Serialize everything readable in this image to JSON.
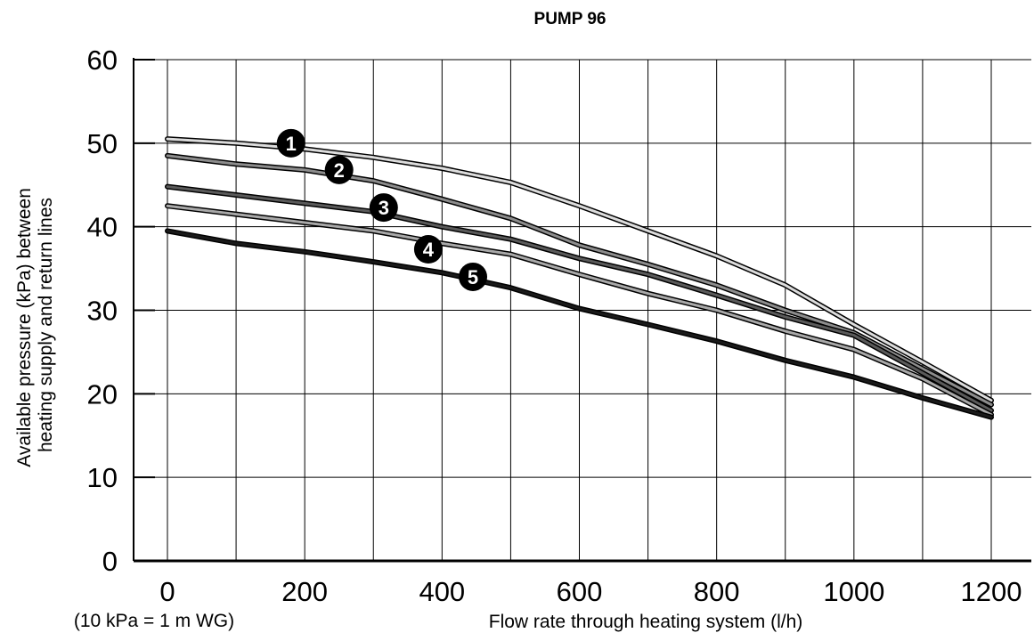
{
  "chart_data": {
    "type": "line",
    "title": "PUMP 96",
    "xlabel": "Flow rate through heating system (l/h)",
    "ylabel_lines": [
      "Available pressure (kPa) between",
      "heating supply and return lines"
    ],
    "note": "(10 kPa = 1 m WG)",
    "xlim": [
      0,
      1200
    ],
    "ylim": [
      0,
      60
    ],
    "x_ticks": [
      0,
      200,
      400,
      600,
      800,
      1000,
      1200
    ],
    "y_ticks": [
      0,
      10,
      20,
      30,
      40,
      50,
      60
    ],
    "grid": true,
    "x": [
      0,
      100,
      200,
      300,
      400,
      500,
      600,
      700,
      800,
      900,
      1000,
      1100,
      1200
    ],
    "series": [
      {
        "label": "1",
        "color": "#dcdcdc",
        "values": [
          50.5,
          50.0,
          49.3,
          48.3,
          47.0,
          45.3,
          42.5,
          39.5,
          36.5,
          33.0,
          28.3,
          23.8,
          19.2
        ]
      },
      {
        "label": "2",
        "color": "#8c8c8c",
        "values": [
          48.5,
          47.5,
          46.8,
          45.5,
          43.3,
          41.0,
          37.8,
          35.5,
          33.0,
          30.0,
          27.3,
          23.0,
          18.7
        ]
      },
      {
        "label": "3",
        "color": "#5a5a5a",
        "values": [
          44.8,
          43.8,
          42.8,
          41.8,
          40.0,
          38.5,
          36.2,
          34.3,
          31.8,
          29.2,
          27.0,
          22.5,
          18.0
        ]
      },
      {
        "label": "4",
        "color": "#a8a8a8",
        "values": [
          42.5,
          41.5,
          40.5,
          39.5,
          38.0,
          36.7,
          34.3,
          32.0,
          30.0,
          27.5,
          25.3,
          21.8,
          17.5
        ]
      },
      {
        "label": "5",
        "color": "#1a1a1a",
        "values": [
          39.5,
          38.0,
          37.0,
          35.8,
          34.5,
          32.7,
          30.2,
          28.3,
          26.3,
          24.0,
          22.0,
          19.5,
          17.2
        ]
      }
    ],
    "markers": [
      {
        "label": "1",
        "x": 180,
        "y": 50.0
      },
      {
        "label": "2",
        "x": 250,
        "y": 46.8
      },
      {
        "label": "3",
        "x": 315,
        "y": 42.3
      },
      {
        "label": "4",
        "x": 380,
        "y": 37.3
      },
      {
        "label": "5",
        "x": 445,
        "y": 34.0
      }
    ]
  }
}
